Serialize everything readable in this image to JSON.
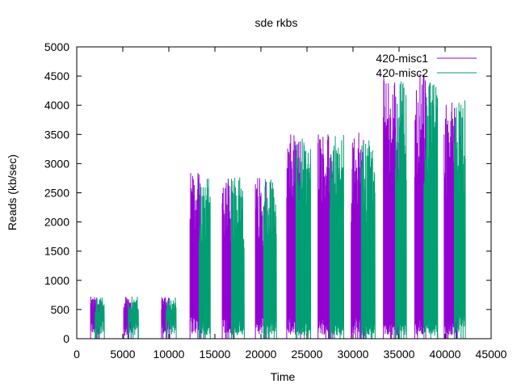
{
  "chart_data": {
    "type": "line",
    "title": "sde rkbs",
    "xlabel": "Time",
    "ylabel": "Reads (kb/sec)",
    "xlim": [
      0,
      45000
    ],
    "ylim": [
      0,
      5000
    ],
    "xticks": [
      0,
      5000,
      10000,
      15000,
      20000,
      25000,
      30000,
      35000,
      40000,
      45000
    ],
    "yticks": [
      0,
      500,
      1000,
      1500,
      2000,
      2500,
      3000,
      3500,
      4000,
      4500,
      5000
    ],
    "grid": false,
    "legend_position": "top-right",
    "series": [
      {
        "name": "420-misc1",
        "color": "#9400d3",
        "bursts": [
          {
            "start": 1500,
            "end": 2400,
            "low": 300,
            "high": 720
          },
          {
            "start": 5100,
            "end": 5900,
            "low": 250,
            "high": 720
          },
          {
            "start": 9200,
            "end": 10100,
            "low": 300,
            "high": 720
          },
          {
            "start": 12300,
            "end": 13500,
            "low": 400,
            "high": 2850
          },
          {
            "start": 15800,
            "end": 17000,
            "low": 400,
            "high": 2850
          },
          {
            "start": 19400,
            "end": 20600,
            "low": 400,
            "high": 2800
          },
          {
            "start": 22800,
            "end": 24300,
            "low": 350,
            "high": 3500
          },
          {
            "start": 26200,
            "end": 27800,
            "low": 350,
            "high": 3600
          },
          {
            "start": 29800,
            "end": 31200,
            "low": 350,
            "high": 3600
          },
          {
            "start": 33300,
            "end": 34900,
            "low": 300,
            "high": 4500
          },
          {
            "start": 36700,
            "end": 37900,
            "low": 300,
            "high": 4600
          },
          {
            "start": 39900,
            "end": 41300,
            "low": 300,
            "high": 4100
          }
        ]
      },
      {
        "name": "420-misc2",
        "color": "#009e73",
        "bursts": [
          {
            "start": 2000,
            "end": 3000,
            "low": 350,
            "high": 720
          },
          {
            "start": 5600,
            "end": 6700,
            "low": 300,
            "high": 720
          },
          {
            "start": 9700,
            "end": 10800,
            "low": 350,
            "high": 720
          },
          {
            "start": 13300,
            "end": 14500,
            "low": 300,
            "high": 2750
          },
          {
            "start": 16800,
            "end": 18200,
            "low": 300,
            "high": 2800
          },
          {
            "start": 20300,
            "end": 21700,
            "low": 300,
            "high": 2750
          },
          {
            "start": 23800,
            "end": 25400,
            "low": 250,
            "high": 3450
          },
          {
            "start": 27500,
            "end": 29000,
            "low": 250,
            "high": 3500
          },
          {
            "start": 30900,
            "end": 32400,
            "low": 250,
            "high": 3400
          },
          {
            "start": 34600,
            "end": 35800,
            "low": 250,
            "high": 4450
          },
          {
            "start": 37700,
            "end": 39200,
            "low": 250,
            "high": 4400
          },
          {
            "start": 41000,
            "end": 42200,
            "low": 400,
            "high": 4150
          }
        ]
      }
    ]
  }
}
